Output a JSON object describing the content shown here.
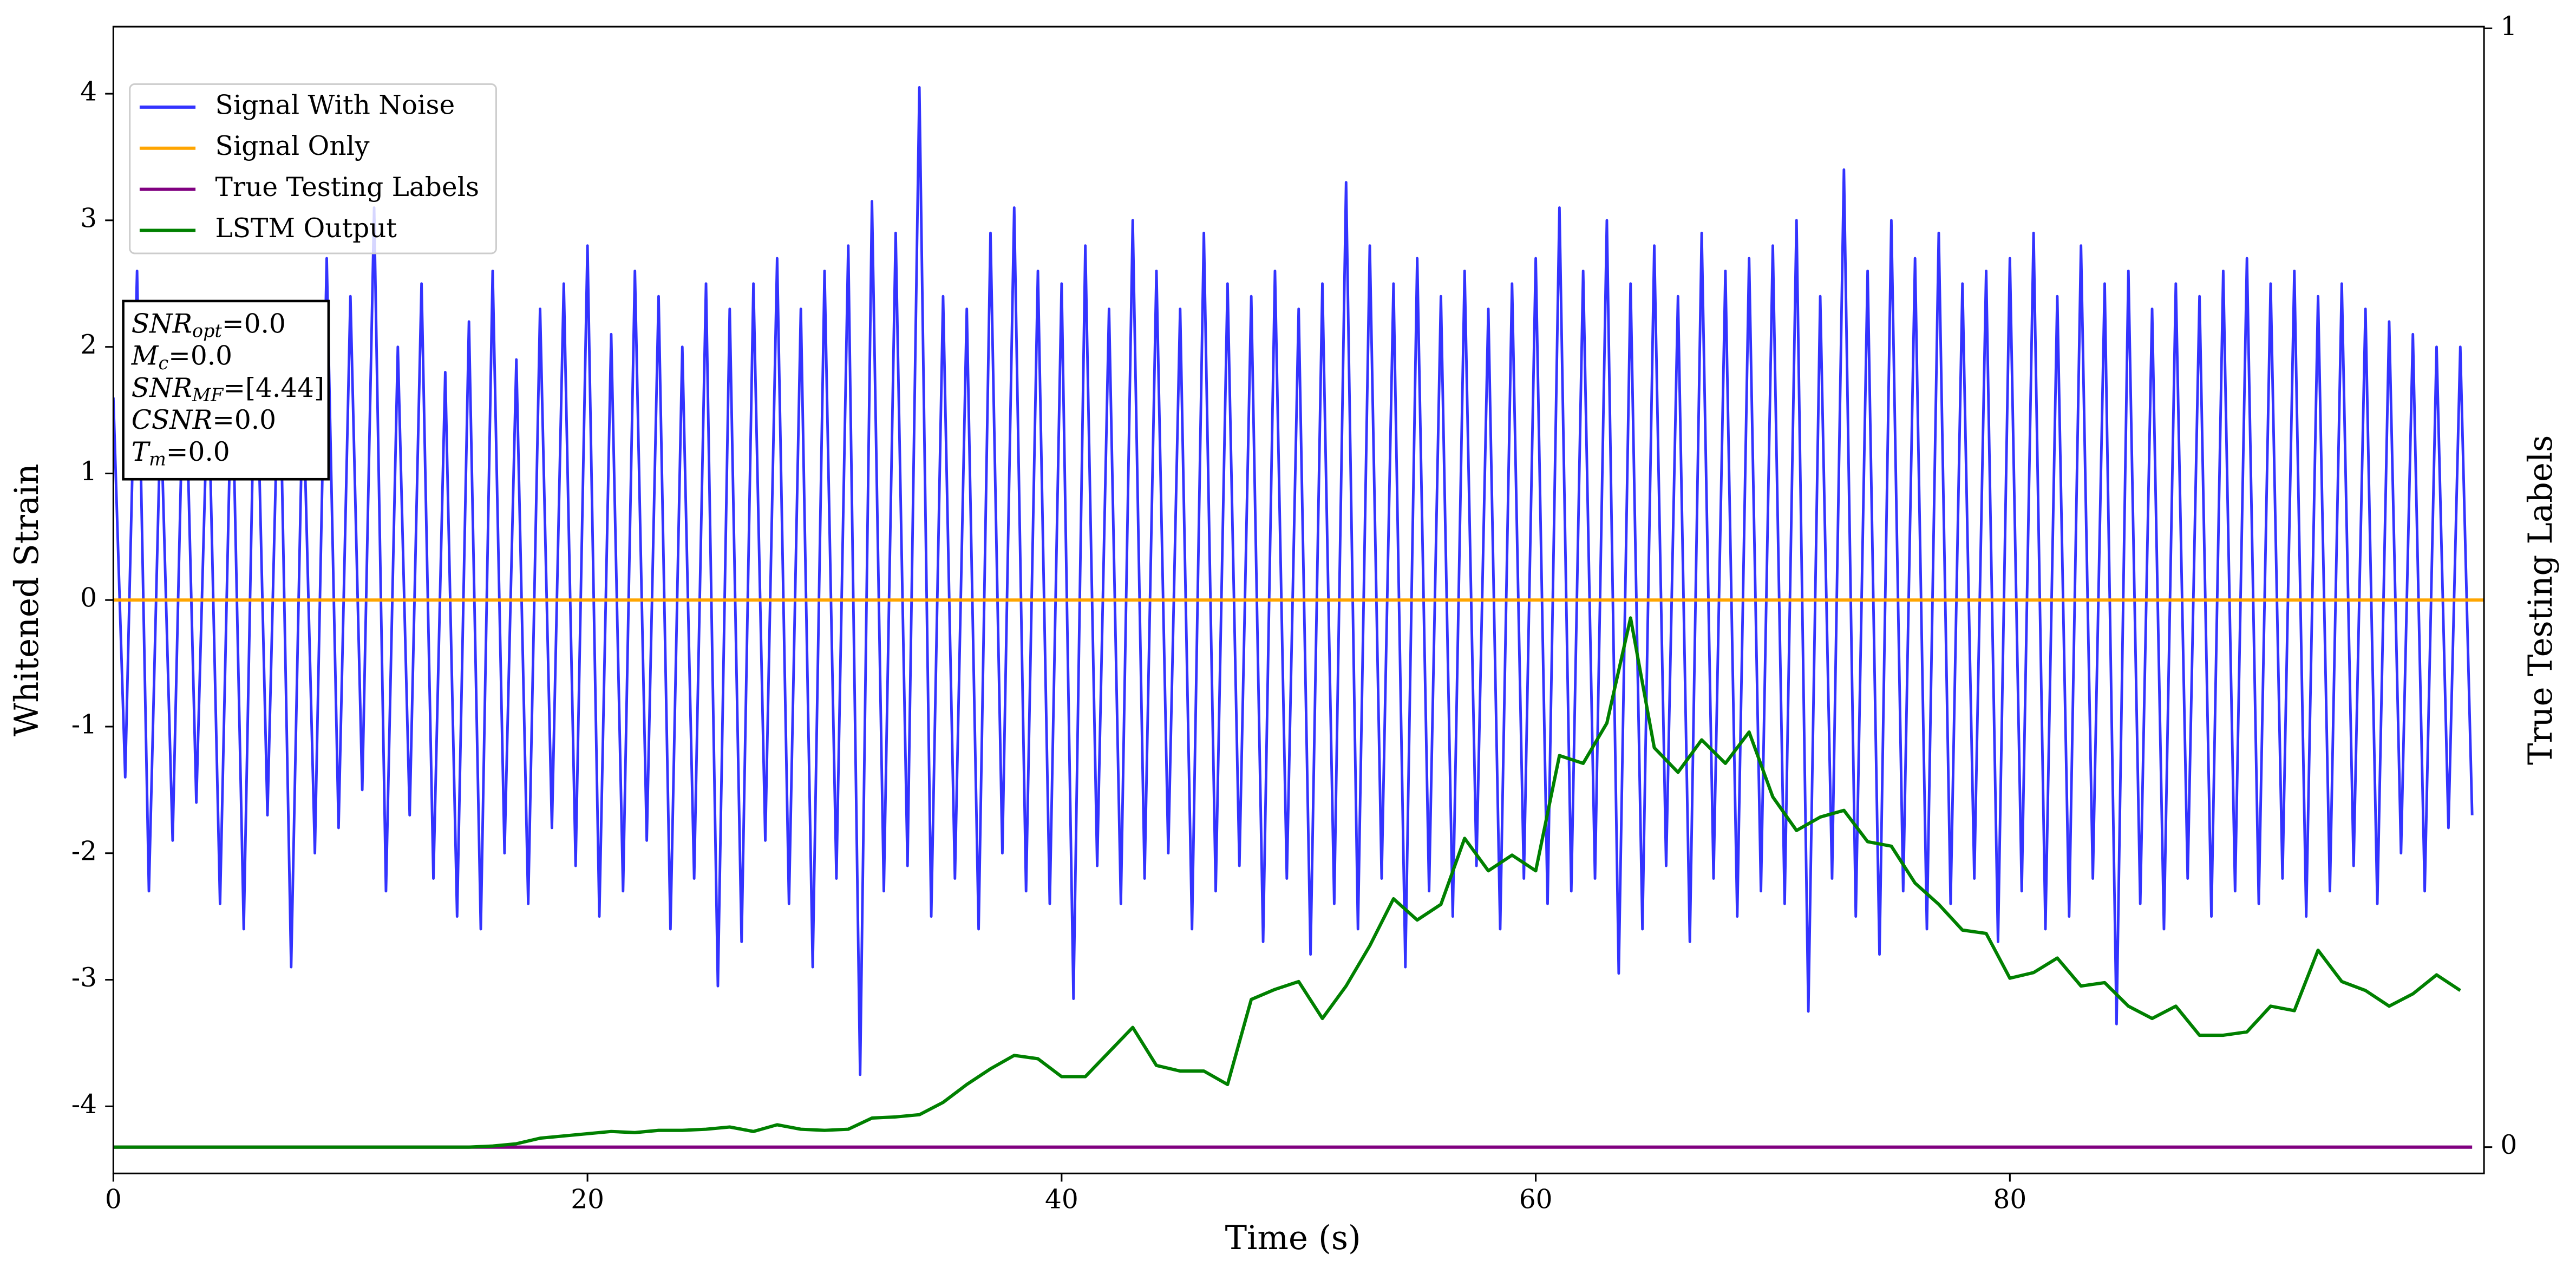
{
  "chart_data": {
    "type": "line",
    "xlabel": "Time (s)",
    "ylabel": "Whitened Strain",
    "y2label": "True Testing Labels",
    "xlim": [
      0,
      100
    ],
    "xticks": [
      0,
      20,
      40,
      60,
      80
    ],
    "ylim": [
      -4.53,
      4.53
    ],
    "yticks": [
      -4,
      -3,
      -2,
      -1,
      0,
      1,
      2,
      3,
      4
    ],
    "y2lim": [
      -0.0235,
      1.0015
    ],
    "y2ticks": [
      0,
      1
    ],
    "legend": "upper left",
    "series": [
      {
        "name": "Signal With Noise",
        "color": "#3333ff",
        "x": [
          0,
          0.5,
          1,
          1.5,
          2,
          2.5,
          3,
          3.5,
          4,
          4.5,
          5,
          5.5,
          6,
          6.5,
          7,
          7.5,
          8,
          8.5,
          9,
          9.5,
          10,
          10.5,
          11,
          11.5,
          12,
          12.5,
          13,
          13.5,
          14,
          14.5,
          15,
          15.5,
          16,
          16.5,
          17,
          17.5,
          18,
          18.5,
          19,
          19.5,
          20,
          20.5,
          21,
          21.5,
          22,
          22.5,
          23,
          23.5,
          24,
          24.5,
          25,
          25.5,
          26,
          26.5,
          27,
          27.5,
          28,
          28.5,
          29,
          29.5,
          30,
          30.5,
          31,
          31.5,
          32,
          32.5,
          33,
          33.5,
          34,
          34.5,
          35,
          35.5,
          36,
          36.5,
          37,
          37.5,
          38,
          38.5,
          39,
          39.5,
          40,
          40.5,
          41,
          41.5,
          42,
          42.5,
          43,
          43.5,
          44,
          44.5,
          45,
          45.5,
          46,
          46.5,
          47,
          47.5,
          48,
          48.5,
          49,
          49.5,
          50,
          50.5,
          51,
          51.5,
          52,
          52.5,
          53,
          53.5,
          54,
          54.5,
          55,
          55.5,
          56,
          56.5,
          57,
          57.5,
          58,
          58.5,
          59,
          59.5,
          60,
          60.5,
          61,
          61.5,
          62,
          62.5,
          63,
          63.5,
          64,
          64.5,
          65,
          65.5,
          66,
          66.5,
          67,
          67.5,
          68,
          68.5,
          69,
          69.5,
          70,
          70.5,
          71,
          71.5,
          72,
          72.5,
          73,
          73.5,
          74,
          74.5,
          75,
          75.5,
          76,
          76.5,
          77,
          77.5,
          78,
          78.5,
          79,
          79.5,
          80,
          80.5,
          81,
          81.5,
          82,
          82.5,
          83,
          83.5,
          84,
          84.5,
          85,
          85.5,
          86,
          86.5,
          87,
          87.5,
          88,
          88.5,
          89,
          89.5,
          90,
          90.5,
          91,
          91.5,
          92,
          92.5,
          93,
          93.5,
          94,
          94.5,
          95,
          95.5,
          96,
          96.5,
          97,
          97.5,
          98,
          98.5,
          99,
          99.5
        ],
        "values": [
          1.6,
          -1.4,
          2.6,
          -2.3,
          1.5,
          -1.9,
          2.2,
          -1.6,
          1.8,
          -2.4,
          1.9,
          -2.6,
          2.3,
          -1.7,
          2.1,
          -2.9,
          1.7,
          -2.0,
          2.7,
          -1.8,
          2.4,
          -1.5,
          3.1,
          -2.3,
          2.0,
          -1.7,
          2.5,
          -2.2,
          1.8,
          -2.5,
          2.2,
          -2.6,
          2.6,
          -2.0,
          1.9,
          -2.4,
          2.3,
          -1.8,
          2.5,
          -2.1,
          2.8,
          -2.5,
          2.1,
          -2.3,
          2.6,
          -1.9,
          2.4,
          -2.6,
          2.0,
          -2.2,
          2.5,
          -3.05,
          2.3,
          -2.7,
          2.5,
          -1.9,
          2.7,
          -2.4,
          2.3,
          -2.9,
          2.6,
          -2.2,
          2.8,
          -3.75,
          3.15,
          -2.3,
          2.9,
          -2.1,
          4.05,
          -2.5,
          2.4,
          -2.2,
          2.3,
          -2.6,
          2.9,
          -2.0,
          3.1,
          -2.3,
          2.6,
          -2.4,
          2.5,
          -3.15,
          2.8,
          -2.1,
          2.3,
          -2.4,
          3.0,
          -2.2,
          2.6,
          -2.0,
          2.3,
          -2.6,
          2.9,
          -2.3,
          2.5,
          -2.1,
          2.4,
          -2.7,
          2.6,
          -2.2,
          2.3,
          -2.8,
          2.5,
          -2.4,
          3.3,
          -2.6,
          2.8,
          -2.2,
          2.5,
          -2.9,
          2.7,
          -2.3,
          2.4,
          -2.5,
          2.6,
          -2.1,
          2.3,
          -2.6,
          2.5,
          -2.2,
          2.7,
          -2.4,
          3.1,
          -2.3,
          2.6,
          -2.2,
          3.0,
          -2.95,
          2.5,
          -2.6,
          2.8,
          -2.1,
          2.4,
          -2.7,
          2.9,
          -2.2,
          2.6,
          -2.5,
          2.7,
          -2.3,
          2.8,
          -2.4,
          3.0,
          -3.25,
          2.4,
          -2.2,
          3.4,
          -2.5,
          2.6,
          -2.8,
          3.0,
          -2.3,
          2.7,
          -2.6,
          2.9,
          -2.4,
          2.5,
          -2.2,
          2.6,
          -2.7,
          2.7,
          -2.3,
          2.9,
          -2.6,
          2.4,
          -2.5,
          2.8,
          -2.2,
          2.5,
          -3.35,
          2.6,
          -2.4,
          2.3,
          -2.6,
          2.5,
          -2.2,
          2.4,
          -2.5,
          2.6,
          -2.3,
          2.7,
          -2.4,
          2.5,
          -2.2,
          2.6,
          -2.5,
          2.4,
          -2.3,
          2.5,
          -2.1,
          2.3,
          -2.4,
          2.2,
          -2.0,
          2.1,
          -2.3,
          2.0,
          -1.8,
          2.0,
          -1.7
        ]
      },
      {
        "name": "Signal Only",
        "color": "#ffa500",
        "x": [
          0,
          100
        ],
        "values": [
          0,
          0
        ]
      },
      {
        "name": "True Testing Labels",
        "color": "#800080",
        "axis": "y2",
        "x": [
          0,
          99.5
        ],
        "values": [
          0,
          0
        ]
      },
      {
        "name": "LSTM Output",
        "color": "#008000",
        "axis": "y2",
        "x": [
          0,
          1,
          2,
          3,
          4,
          5,
          6,
          7,
          8,
          9,
          10,
          11,
          12,
          13,
          14,
          15,
          16,
          17,
          18,
          19,
          20,
          21,
          22,
          23,
          24,
          25,
          26,
          27,
          28,
          29,
          30,
          31,
          32,
          33,
          34,
          35,
          36,
          37,
          38,
          39,
          40,
          41,
          42,
          43,
          44,
          45,
          46,
          47,
          48,
          49,
          50,
          51,
          52,
          53,
          54,
          55,
          56,
          57,
          58,
          59,
          60,
          61,
          62,
          63,
          64,
          65,
          66,
          67,
          68,
          69,
          70,
          71,
          72,
          73,
          74,
          75,
          76,
          77,
          78,
          79,
          80,
          81,
          82,
          83,
          84,
          85,
          86,
          87,
          88,
          89,
          90,
          91,
          92,
          93,
          94,
          95,
          96,
          97,
          98,
          99
        ],
        "values": [
          0,
          0,
          0,
          0,
          0,
          0,
          0,
          0,
          0,
          0,
          0,
          0,
          0,
          0,
          0,
          0,
          0.001,
          0.003,
          0.008,
          0.01,
          0.012,
          0.014,
          0.013,
          0.015,
          0.015,
          0.016,
          0.018,
          0.014,
          0.02,
          0.016,
          0.015,
          0.016,
          0.026,
          0.027,
          0.029,
          0.04,
          0.056,
          0.07,
          0.082,
          0.079,
          0.063,
          0.063,
          0.085,
          0.107,
          0.073,
          0.068,
          0.068,
          0.056,
          0.132,
          0.141,
          0.148,
          0.115,
          0.144,
          0.18,
          0.222,
          0.203,
          0.217,
          0.276,
          0.247,
          0.261,
          0.247,
          0.35,
          0.343,
          0.379,
          0.473,
          0.357,
          0.335,
          0.364,
          0.343,
          0.371,
          0.313,
          0.283,
          0.295,
          0.301,
          0.273,
          0.269,
          0.236,
          0.217,
          0.194,
          0.191,
          0.151,
          0.156,
          0.169,
          0.144,
          0.147,
          0.126,
          0.115,
          0.126,
          0.1,
          0.1,
          0.103,
          0.126,
          0.122,
          0.176,
          0.148,
          0.14,
          0.126,
          0.137,
          0.154,
          0.14
        ]
      }
    ],
    "annotation": [
      {
        "symbol": "SNR",
        "sub": "opt",
        "text": "=0.0"
      },
      {
        "symbol": "M",
        "sub": "c",
        "text": "=0.0"
      },
      {
        "symbol": "SNR",
        "sub": "MF",
        "text": "=[4.44]"
      },
      {
        "symbol": "CSNR",
        "text": "=0.0"
      },
      {
        "symbol": "T",
        "sub": "m",
        "text": "=0.0"
      }
    ]
  }
}
